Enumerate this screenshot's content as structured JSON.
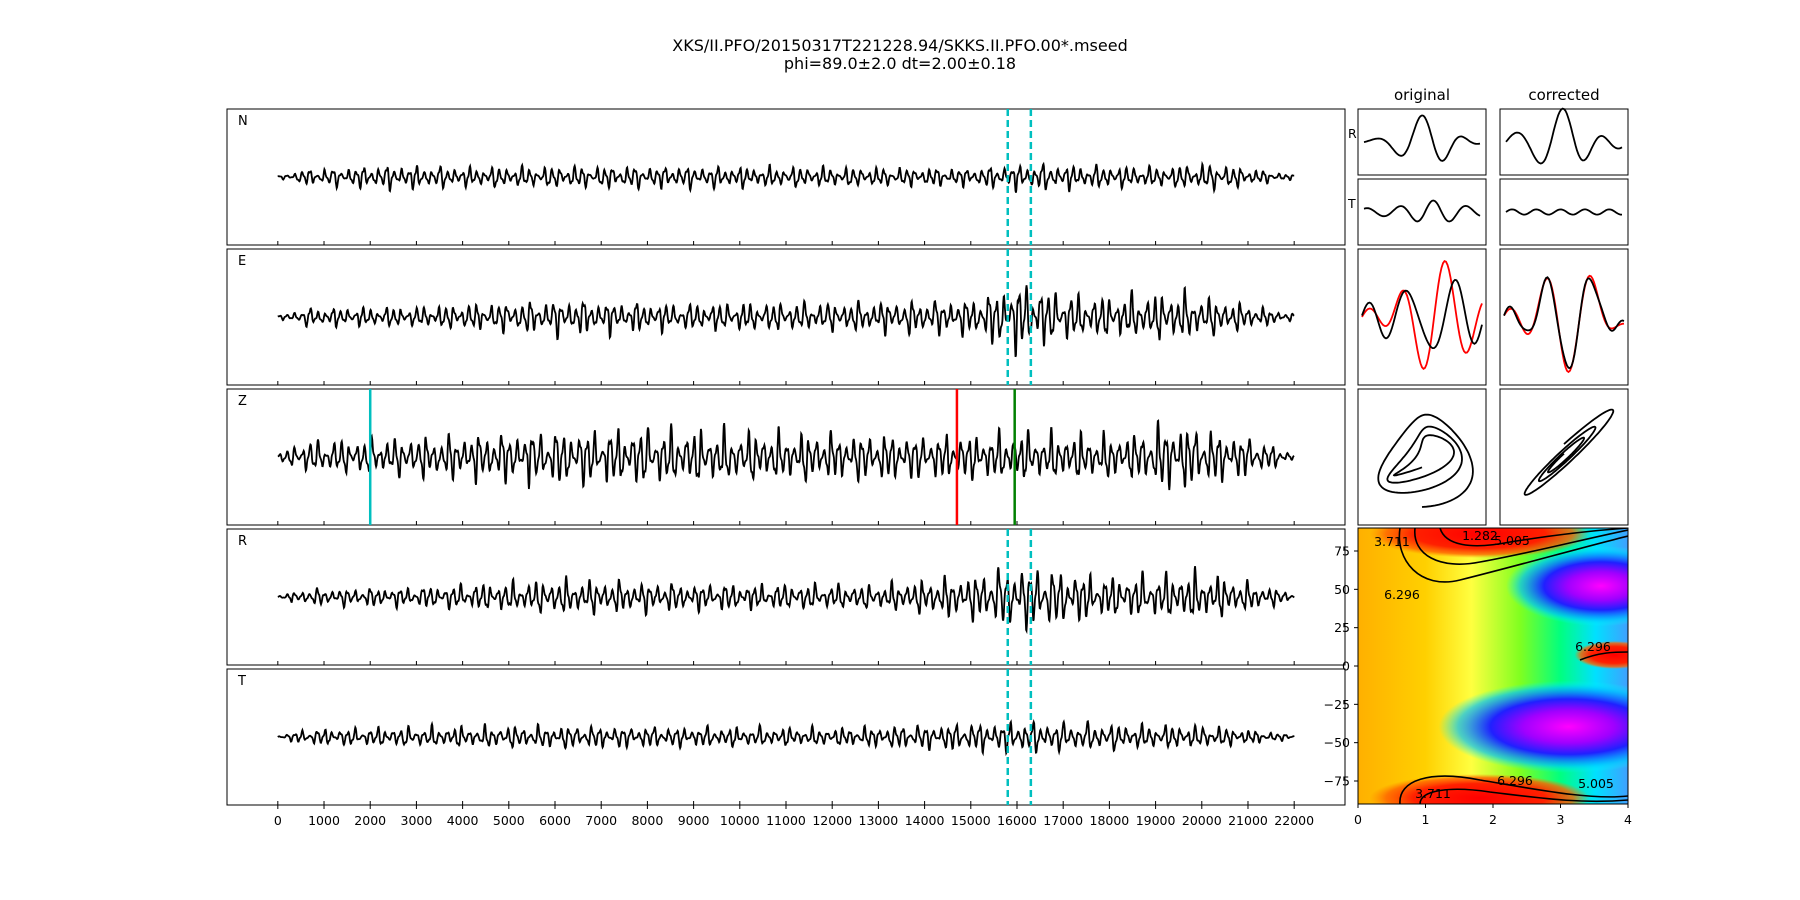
{
  "title": {
    "line1": "XKS/II.PFO/20150317T221228.94/SKKS.II.PFO.00*.mseed",
    "line2": "phi=89.0±2.0 dt=2.00±0.18"
  },
  "chart_data": [
    {
      "type": "line",
      "panel": "waveforms",
      "traces": [
        "N",
        "E",
        "Z",
        "R",
        "T"
      ],
      "x_ticks": [
        0,
        1000,
        2000,
        3000,
        4000,
        5000,
        6000,
        7000,
        8000,
        9000,
        10000,
        11000,
        12000,
        13000,
        14000,
        15000,
        16000,
        17000,
        18000,
        19000,
        20000,
        21000,
        22000
      ],
      "xlim": [
        -1100,
        23100
      ],
      "data_range": [
        0,
        22000
      ],
      "window_lines": {
        "color": "#00bfbf",
        "x": [
          15800,
          16300
        ],
        "traces": [
          "N",
          "E",
          "R",
          "T"
        ]
      },
      "markers": [
        {
          "trace": "Z",
          "x": 2000,
          "color": "#00bfbf"
        },
        {
          "trace": "Z",
          "x": 14700,
          "color": "#ff0000"
        },
        {
          "trace": "Z",
          "x": 15950,
          "color": "#008000"
        }
      ]
    },
    {
      "type": "line",
      "panel": "particle-motion",
      "column_titles": [
        "original",
        "corrected"
      ],
      "row_labels": [
        "R",
        "T"
      ],
      "colors": {
        "trace": "#000000",
        "overlay": "#ff0000"
      }
    },
    {
      "type": "heatmap",
      "panel": "error-surface",
      "xlim": [
        0,
        4
      ],
      "ylim": [
        -90,
        90
      ],
      "x_ticks": [
        0,
        1,
        2,
        3,
        4
      ],
      "y_ticks": [
        75,
        50,
        25,
        0,
        -25,
        -50,
        -75
      ],
      "colormap": "hsv",
      "contour_labels": [
        "1.282",
        "3.711",
        "5.005",
        "6.296",
        "6.296",
        "6.296",
        "3.711",
        "5.005"
      ]
    }
  ]
}
